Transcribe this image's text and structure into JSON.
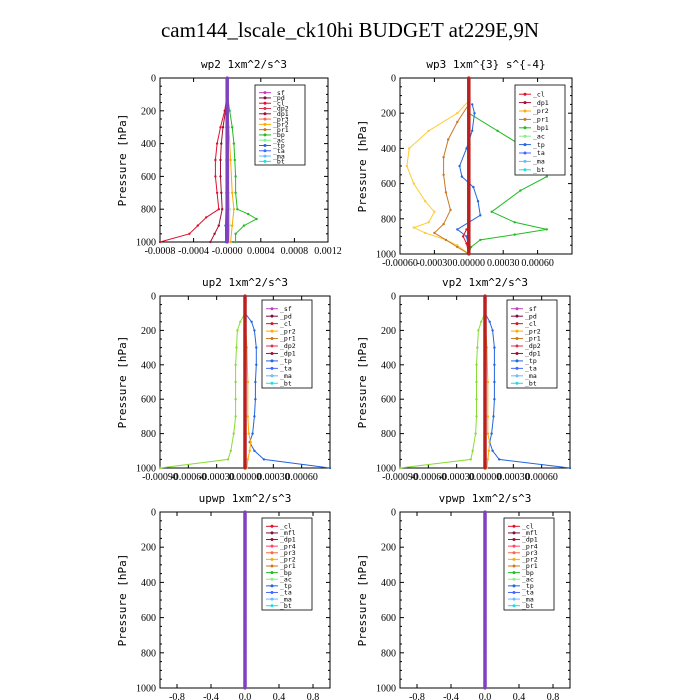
{
  "title": "cam144_lscale_ck10hi  BUDGET at229E,9N",
  "chart_data": [
    {
      "id": "wp2",
      "type": "line",
      "title": "wp2   1xm^2/s^3",
      "ylabel": "Pressure [hPa]",
      "ylim": [
        1000,
        0
      ],
      "xlim": [
        -0.0008,
        0.0012
      ],
      "yticks": [
        0,
        200,
        400,
        600,
        800,
        1000
      ],
      "xticks": [
        -0.0008,
        -0.0004,
        0.0,
        0.0004,
        0.0008,
        0.0012
      ],
      "xtick_labels": [
        "-0.0008",
        "-0.0004",
        "-0.0000",
        "0.0004",
        "0.0008",
        "0.0012"
      ],
      "legend": [
        "_sf",
        "_pd",
        "_cl",
        "_dp2",
        "_dp1",
        "_pr3",
        "_pr2",
        "_pr1",
        "_bp",
        "_ac",
        "_tp",
        "_ta",
        "_ma",
        "_bt"
      ],
      "series": [
        {
          "name": "_cl",
          "color": "#e0102a",
          "p": [
            100,
            200,
            300,
            400,
            500,
            600,
            700,
            800,
            850,
            900,
            950,
            1000
          ],
          "x": [
            0,
            -3e-05,
            -8e-05,
            -0.00012,
            -0.00014,
            -0.00014,
            -0.00012,
            -0.0001,
            -0.00025,
            -0.00035,
            -0.00045,
            -0.0008
          ]
        },
        {
          "name": "_dp2",
          "color": "#a01030",
          "p": [
            100,
            200,
            300,
            400,
            500,
            600,
            700,
            800,
            900,
            950,
            1000
          ],
          "x": [
            0,
            -2e-05,
            -5e-05,
            -7e-05,
            -8e-05,
            -8e-05,
            -7e-05,
            -6e-05,
            -0.0001,
            -0.00015,
            -0.0002
          ]
        },
        {
          "name": "_pr2",
          "color": "#ffaa00",
          "p": [
            100,
            300,
            500,
            700,
            800,
            900,
            1000
          ],
          "x": [
            0,
            2e-05,
            4e-05,
            6e-05,
            8e-05,
            6e-05,
            4e-05
          ]
        },
        {
          "name": "_bp",
          "color": "#22bb22",
          "p": [
            100,
            200,
            300,
            400,
            500,
            600,
            700,
            800,
            830,
            860,
            900,
            950,
            1000
          ],
          "x": [
            0,
            3e-05,
            6e-05,
            8e-05,
            9e-05,
            0.0001,
            0.0001,
            0.00012,
            0.00025,
            0.00035,
            0.0002,
            0.0001,
            0.0001
          ]
        },
        {
          "name": "_ac",
          "color": "#88ee88",
          "p": [
            100,
            300,
            500,
            700,
            800,
            900,
            1000
          ],
          "x": [
            0,
            1e-05,
            2e-05,
            2e-05,
            3e-05,
            3e-05,
            2e-05
          ]
        },
        {
          "name": "_tp",
          "color": "#2266dd",
          "p": [
            100,
            300,
            500,
            700,
            900,
            1000
          ],
          "x": [
            0,
            -1e-05,
            -1e-05,
            -1e-05,
            -2e-05,
            -2e-05
          ]
        },
        {
          "name": "_bt",
          "color": "#8040c0",
          "p": [
            0,
            200,
            400,
            600,
            800,
            1000
          ],
          "x": [
            0,
            0,
            0,
            0,
            0,
            0
          ]
        }
      ]
    },
    {
      "id": "wp3",
      "type": "line",
      "title": "wp3   1xm^{3} s^{-4}",
      "ylabel": "Pressure [hPa]",
      "ylim": [
        1000,
        0
      ],
      "xlim": [
        -0.0006,
        0.0009
      ],
      "yticks": [
        0,
        200,
        400,
        600,
        800,
        1000
      ],
      "xticks": [
        -0.0006,
        -0.0003,
        0.0,
        0.0003,
        0.0006
      ],
      "xtick_labels": [
        "-0.00060",
        "-0.00030",
        "0.00000",
        "0.00030",
        "0.00060"
      ],
      "legend": [
        "_cl",
        "_dp1",
        "_pr2",
        "_pr1",
        "_bp1",
        "_ac",
        "_tp",
        "_ta",
        "_ma",
        "_bt"
      ],
      "series": [
        {
          "name": "_pr2",
          "color": "#ffcc33",
          "p": [
            130,
            200,
            300,
            400,
            500,
            600,
            700,
            760,
            820,
            850,
            880,
            920,
            950,
            1000
          ],
          "x": [
            0,
            -0.0001,
            -0.00035,
            -0.00052,
            -0.00054,
            -0.00048,
            -0.00038,
            -0.0003,
            -0.00035,
            -0.00048,
            -0.00038,
            -0.0002,
            -0.0001,
            0
          ]
        },
        {
          "name": "_pr1",
          "color": "#cc7722",
          "p": [
            150,
            250,
            350,
            450,
            550,
            650,
            750,
            830,
            880,
            920,
            960,
            1000
          ],
          "x": [
            0,
            -0.0001,
            -0.00018,
            -0.00022,
            -0.00022,
            -0.0002,
            -0.00016,
            -0.00022,
            -0.0003,
            -0.0002,
            -0.0001,
            0
          ]
        },
        {
          "name": "_bp1",
          "color": "#22bb22",
          "p": [
            200,
            300,
            400,
            480,
            520,
            560,
            640,
            760,
            820,
            860,
            890,
            920,
            960,
            1000
          ],
          "x": [
            0,
            0.00025,
            0.0005,
            0.00068,
            0.0007,
            0.00068,
            0.00045,
            0.0002,
            0.0004,
            0.00068,
            0.0004,
            0.0001,
            2e-05,
            0
          ]
        },
        {
          "name": "_tp",
          "color": "#2266dd",
          "p": [
            150,
            200,
            300,
            400,
            500,
            560,
            620,
            700,
            780,
            860,
            900,
            960,
            1000
          ],
          "x": [
            3e-05,
            5e-05,
            3e-05,
            -2e-05,
            -8e-05,
            -6e-05,
            4e-05,
            8e-05,
            0.0001,
            -0.0001,
            -2e-05,
            0,
            0
          ]
        },
        {
          "name": "_cl",
          "color": "#e0102a",
          "p": [
            860,
            900,
            940,
            1000
          ],
          "x": [
            -2e-05,
            -5e-05,
            -2e-05,
            0
          ]
        },
        {
          "name": "_bt",
          "color": "#bb2020",
          "p": [
            0,
            200,
            400,
            600,
            800,
            1000
          ],
          "x": [
            0,
            0,
            0,
            0,
            0,
            0
          ]
        }
      ]
    },
    {
      "id": "up2",
      "type": "line",
      "title": "up2   1xm^2/s^3",
      "ylabel": "Pressure [hPa]",
      "ylim": [
        1000,
        0
      ],
      "xlim": [
        -0.0009,
        0.0009
      ],
      "yticks": [
        0,
        200,
        400,
        600,
        800,
        1000
      ],
      "xticks": [
        -0.0009,
        -0.0006,
        -0.0003,
        0.0,
        0.0003,
        0.0006
      ],
      "xtick_labels": [
        "-0.00090",
        "-0.00060",
        "-0.00030",
        "0.00000",
        "0.00030",
        "0.00060"
      ],
      "legend": [
        "_sf",
        "_pd",
        "_cl",
        "_pr2",
        "_pr1",
        "_dp2",
        "_dp1",
        "_tp",
        "_ta",
        "_ma",
        "_bt"
      ],
      "series": [
        {
          "name": "_dp1",
          "color": "#88dd33",
          "p": [
            100,
            150,
            200,
            300,
            400,
            500,
            600,
            700,
            800,
            900,
            950,
            1000
          ],
          "x": [
            0,
            -5e-05,
            -8e-05,
            -9e-05,
            -0.0001,
            -0.0001,
            -0.0001,
            -0.0001,
            -0.00012,
            -0.00015,
            -0.00018,
            -0.0009
          ]
        },
        {
          "name": "_tp",
          "color": "#2266dd",
          "p": [
            100,
            150,
            200,
            300,
            400,
            500,
            600,
            700,
            800,
            850,
            900,
            950,
            1000
          ],
          "x": [
            0,
            7e-05,
            0.0001,
            0.00012,
            0.00012,
            0.00011,
            0.00011,
            0.0001,
            8e-05,
            5e-05,
            0.0001,
            0.0002,
            0.0009
          ]
        },
        {
          "name": "_pr2",
          "color": "#ffaa00",
          "p": [
            100,
            300,
            500,
            700,
            800,
            850,
            900,
            950,
            1000
          ],
          "x": [
            0,
            2e-05,
            3e-05,
            3e-05,
            4e-05,
            6e-05,
            5e-05,
            3e-05,
            2e-05
          ]
        },
        {
          "name": "_bt",
          "color": "#bb2020",
          "p": [
            0,
            200,
            400,
            600,
            800,
            1000
          ],
          "x": [
            0,
            0,
            0,
            0,
            0,
            0
          ]
        }
      ]
    },
    {
      "id": "vp2",
      "type": "line",
      "title": "vp2   1xm^2/s^3",
      "ylabel": "Pressure [hPa]",
      "ylim": [
        1000,
        0
      ],
      "xlim": [
        -0.0009,
        0.0009
      ],
      "yticks": [
        0,
        200,
        400,
        600,
        800,
        1000
      ],
      "xticks": [
        -0.0009,
        -0.0006,
        -0.0003,
        0.0,
        0.0003,
        0.0006
      ],
      "xtick_labels": [
        "-0.00090",
        "-0.00060",
        "-0.00030",
        "0.00000",
        "0.00030",
        "0.00060"
      ],
      "legend": [
        "_sf",
        "_pd",
        "_cl",
        "_pr2",
        "_pr1",
        "_dp2",
        "_dp1",
        "_tp",
        "_ta",
        "_ma",
        "_bt"
      ],
      "series": [
        {
          "name": "_dp1",
          "color": "#88dd33",
          "p": [
            100,
            150,
            200,
            300,
            400,
            500,
            600,
            700,
            800,
            900,
            950,
            1000
          ],
          "x": [
            0,
            -4e-05,
            -7e-05,
            -8e-05,
            -9e-05,
            -9e-05,
            -9e-05,
            -9e-05,
            -0.0001,
            -0.00013,
            -0.00015,
            -0.0009
          ]
        },
        {
          "name": "_tp",
          "color": "#2266dd",
          "p": [
            100,
            150,
            200,
            300,
            400,
            500,
            600,
            700,
            800,
            850,
            900,
            950,
            1000
          ],
          "x": [
            0,
            5e-05,
            8e-05,
            0.0001,
            0.0001,
            0.0001,
            0.0001,
            9e-05,
            7e-05,
            5e-05,
            8e-05,
            0.00015,
            0.0009
          ]
        },
        {
          "name": "_pr2",
          "color": "#ffaa00",
          "p": [
            100,
            300,
            500,
            700,
            800,
            850,
            900,
            950,
            1000
          ],
          "x": [
            0,
            2e-05,
            3e-05,
            3e-05,
            3e-05,
            5e-05,
            4e-05,
            3e-05,
            2e-05
          ]
        },
        {
          "name": "_bt",
          "color": "#bb2020",
          "p": [
            0,
            200,
            400,
            600,
            800,
            1000
          ],
          "x": [
            0,
            0,
            0,
            0,
            0,
            0
          ]
        }
      ]
    },
    {
      "id": "upwp",
      "type": "line",
      "title": "upwp   1xm^2/s^3",
      "ylabel": "Pressure [hPa]",
      "ylim": [
        1000,
        0
      ],
      "xlim": [
        -1.0,
        1.0
      ],
      "yticks": [
        0,
        200,
        400,
        600,
        800,
        1000
      ],
      "xticks": [
        -0.8,
        -0.4,
        0.0,
        0.4,
        0.8
      ],
      "xtick_labels": [
        "-0.8",
        "-0.4",
        "0.0",
        "0.4",
        "0.8"
      ],
      "legend": [
        "_cl",
        "_mfl",
        "_dp1",
        "_pr4",
        "_pr3",
        "_pr2",
        "_pr1",
        "_bp",
        "_ac",
        "_tp",
        "_ta",
        "_ma",
        "_bt"
      ],
      "series": [
        {
          "name": "_bt",
          "color": "#8040c0",
          "p": [
            0,
            200,
            400,
            600,
            800,
            1000
          ],
          "x": [
            0,
            0,
            0,
            0,
            0,
            0
          ]
        }
      ]
    },
    {
      "id": "vpwp",
      "type": "line",
      "title": "vpwp   1xm^2/s^3",
      "ylabel": "Pressure [hPa]",
      "ylim": [
        1000,
        0
      ],
      "xlim": [
        -1.0,
        1.0
      ],
      "yticks": [
        0,
        200,
        400,
        600,
        800,
        1000
      ],
      "xticks": [
        -0.8,
        -0.4,
        0.0,
        0.4,
        0.8
      ],
      "xtick_labels": [
        "-0.8",
        "-0.4",
        "0.0",
        "0.4",
        "0.8"
      ],
      "legend": [
        "_cl",
        "_mfl",
        "_dp1",
        "_pr4",
        "_pr3",
        "_pr2",
        "_pr1",
        "_bp",
        "_ac",
        "_tp",
        "_ta",
        "_ma",
        "_bt"
      ],
      "series": [
        {
          "name": "_bt",
          "color": "#8040c0",
          "p": [
            0,
            200,
            400,
            600,
            800,
            1000
          ],
          "x": [
            0,
            0,
            0,
            0,
            0,
            0
          ]
        }
      ]
    }
  ],
  "legend_colors": {
    "_sf": "#c040c0",
    "_pd": "#7a1040",
    "_cl": "#e0102a",
    "_mfl": "#7a1040",
    "_dp2": "#e03050",
    "_dp1": "#a01030",
    "_pr4": "#ff4466",
    "_pr3": "#ff6644",
    "_pr2": "#ffaa00",
    "_pr1": "#cc7722",
    "_bp": "#22bb22",
    "_bp1": "#22bb22",
    "_ac": "#88ee88",
    "_tp": "#2266dd",
    "_ta": "#4466ff",
    "_ma": "#66bbff",
    "_bt": "#22dddd"
  }
}
